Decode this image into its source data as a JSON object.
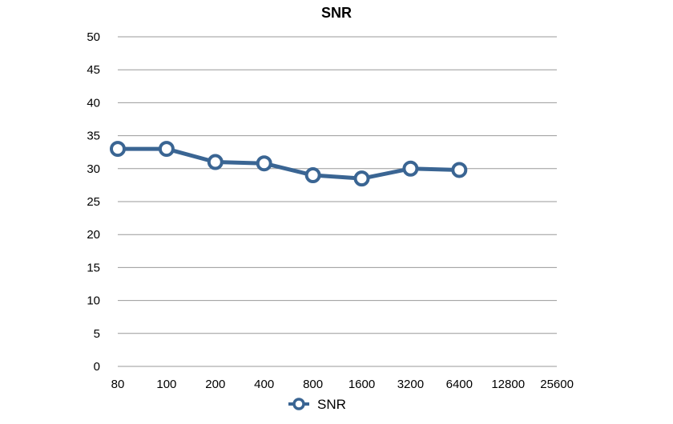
{
  "chart_data": {
    "type": "line",
    "title": "SNR",
    "xlabel": "",
    "ylabel": "",
    "categories": [
      "80",
      "100",
      "200",
      "400",
      "800",
      "1600",
      "3200",
      "6400",
      "12800",
      "25600"
    ],
    "series": [
      {
        "name": "SNR",
        "values": [
          33.0,
          33.0,
          31.0,
          30.8,
          29.0,
          28.5,
          30.0,
          29.8,
          null,
          null
        ],
        "color": "#3a6593"
      }
    ],
    "ylim": [
      0,
      50
    ],
    "yticks": [
      0,
      5,
      10,
      15,
      20,
      25,
      30,
      35,
      40,
      45,
      50
    ],
    "grid": true,
    "legend": "bottom-center",
    "colors": {
      "line": "#3a6593",
      "grid": "#999999",
      "marker_fill": "#ffffff"
    }
  }
}
